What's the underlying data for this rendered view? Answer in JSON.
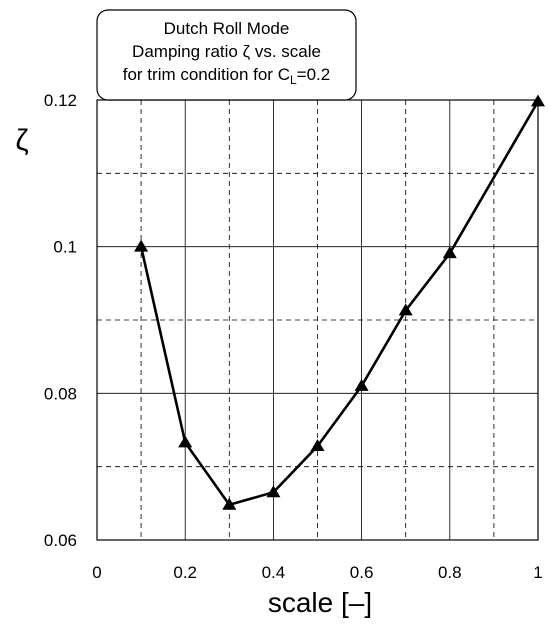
{
  "chart_data": {
    "type": "line",
    "title_lines": [
      "Dutch Roll Mode",
      "Damping ratio ζ vs. scale",
      "for trim condition for C"
    ],
    "title_subscript": "L",
    "title_suffix": "=0.2",
    "xlabel": "scale [–]",
    "ylabel": "ζ",
    "xlim": [
      0,
      1
    ],
    "ylim": [
      0.06,
      0.12
    ],
    "x_ticks": [
      0,
      0.2,
      0.4,
      0.6,
      0.8,
      1
    ],
    "x_tick_labels": [
      "0",
      "0.2",
      "0.4",
      "0.6",
      "0.8",
      "1"
    ],
    "y_ticks": [
      0.06,
      0.08,
      0.1,
      0.12
    ],
    "y_tick_labels": [
      "0.06",
      "0.08",
      "0.1",
      "0.12"
    ],
    "grid_major": true,
    "grid_minor_dashed": true,
    "marker": "triangle",
    "line_color": "#000000",
    "series": [
      {
        "x": [
          0.1,
          0.2,
          0.3,
          0.4,
          0.5,
          0.6,
          0.7,
          0.8,
          1.0
        ],
        "y": [
          0.1,
          0.0733,
          0.0648,
          0.0665,
          0.0728,
          0.081,
          0.0913,
          0.0991,
          0.1198
        ]
      }
    ]
  }
}
